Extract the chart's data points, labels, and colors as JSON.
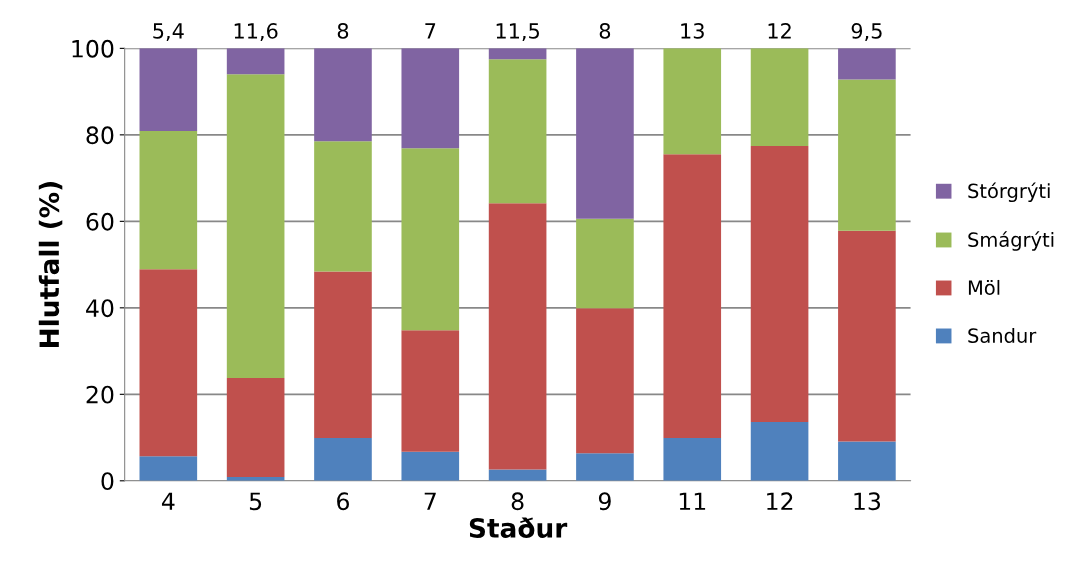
{
  "chart_data": {
    "type": "bar",
    "stacked": true,
    "xlabel": "Staður",
    "ylabel": "Hlutfall (%)",
    "categories": [
      "4",
      "5",
      "6",
      "7",
      "8",
      "9",
      "11",
      "12",
      "13"
    ],
    "series": [
      {
        "name": "Sandur",
        "color": "#4f81bd",
        "values": [
          5.7,
          0.9,
          9.9,
          6.7,
          2.6,
          6.4,
          9.9,
          13.6,
          9.1
        ]
      },
      {
        "name": "Möl",
        "color": "#c0504d",
        "values": [
          43.2,
          22.9,
          38.5,
          28.1,
          61.6,
          33.5,
          65.6,
          63.8,
          48.7
        ]
      },
      {
        "name": "Smágrýti",
        "color": "#9bbb59",
        "values": [
          32.0,
          70.2,
          30.1,
          42.1,
          33.3,
          20.7,
          24.5,
          22.6,
          35.0
        ]
      },
      {
        "name": "Stórgrýti",
        "color": "#8064a2",
        "values": [
          19.1,
          6.0,
          21.5,
          23.1,
          2.5,
          39.4,
          0,
          0,
          7.2
        ]
      }
    ],
    "annotations": [
      {
        "text": "5,4",
        "x": "4",
        "y": 100
      },
      {
        "text": "11,6",
        "x": "5",
        "y": 100
      },
      {
        "text": "8",
        "x": "6",
        "y": 100
      },
      {
        "text": "7",
        "x": "7",
        "y": 100
      },
      {
        "text": "11,5",
        "x": "8",
        "y": 100
      },
      {
        "text": "8",
        "x": "9",
        "y": 100
      },
      {
        "text": "13",
        "x": "11",
        "y": 100
      },
      {
        "text": "12",
        "x": "12",
        "y": 100
      },
      {
        "text": "9,5",
        "x": "13",
        "y": 100
      }
    ],
    "ylim": [
      0,
      100
    ],
    "yticks": [
      0,
      20,
      40,
      60,
      80,
      100
    ],
    "grid": "y",
    "legend": "right"
  }
}
